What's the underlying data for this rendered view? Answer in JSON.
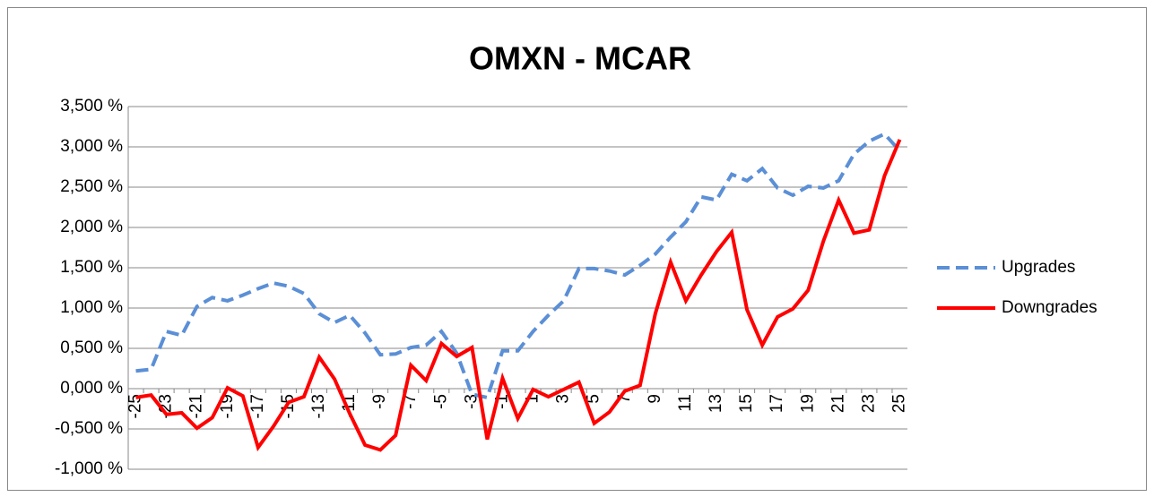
{
  "chart_data": {
    "type": "line",
    "title": "OMXN - MCAR",
    "categories": [
      "-25",
      null,
      "-23",
      null,
      "-21",
      null,
      "-19",
      null,
      "-17",
      null,
      "-15",
      null,
      "-13",
      null,
      "-11",
      null,
      "-9",
      null,
      "-7",
      null,
      "-5",
      null,
      "-3",
      null,
      "-1",
      null,
      "1",
      null,
      "3",
      null,
      "5",
      null,
      "7",
      null,
      "9",
      null,
      "11",
      null,
      "13",
      null,
      "15",
      null,
      "17",
      null,
      "19",
      null,
      "21",
      null,
      "23",
      null,
      "25"
    ],
    "series": [
      {
        "name": "Upgrades",
        "color": "#5b8fd6",
        "line_style": "dashed",
        "values": [
          0.22,
          0.24,
          0.71,
          0.66,
          1.02,
          1.13,
          1.09,
          1.16,
          1.24,
          1.31,
          1.27,
          1.18,
          0.93,
          0.82,
          0.91,
          0.69,
          0.42,
          0.43,
          0.51,
          0.54,
          0.71,
          0.44,
          -0.07,
          -0.11,
          0.47,
          0.47,
          0.71,
          0.91,
          1.09,
          1.49,
          1.49,
          1.46,
          1.41,
          1.53,
          1.67,
          1.88,
          2.07,
          2.38,
          2.34,
          2.66,
          2.58,
          2.73,
          2.49,
          2.4,
          2.51,
          2.49,
          2.58,
          2.91,
          3.07,
          3.16,
          2.95
        ]
      },
      {
        "name": "Downgrades",
        "color": "#ff0000",
        "line_style": "solid",
        "values": [
          -0.11,
          -0.08,
          -0.32,
          -0.3,
          -0.49,
          -0.36,
          0.01,
          -0.09,
          -0.73,
          -0.47,
          -0.17,
          -0.1,
          0.39,
          0.12,
          -0.31,
          -0.7,
          -0.76,
          -0.58,
          0.29,
          0.1,
          0.56,
          0.4,
          0.51,
          -0.63,
          0.13,
          -0.37,
          -0.01,
          -0.1,
          -0.01,
          0.08,
          -0.43,
          -0.29,
          -0.03,
          0.04,
          0.93,
          1.57,
          1.09,
          1.41,
          1.7,
          1.94,
          0.98,
          0.54,
          0.89,
          0.99,
          1.22,
          1.83,
          2.34,
          1.93,
          1.97,
          2.64,
          3.09
        ]
      }
    ],
    "ylim": [
      -1.0,
      3.5
    ],
    "yticks": [
      {
        "value": -1.0,
        "label": "-1,000 %"
      },
      {
        "value": -0.5,
        "label": "-0,500 %"
      },
      {
        "value": 0,
        "label": "0,000 %"
      },
      {
        "value": 0.5,
        "label": "0,500 %"
      },
      {
        "value": 1.0,
        "label": "1,000 %"
      },
      {
        "value": 1.5,
        "label": "1,500 %"
      },
      {
        "value": 2.0,
        "label": "2,000 %"
      },
      {
        "value": 2.5,
        "label": "2,500 %"
      },
      {
        "value": 3.0,
        "label": "3,000 %"
      },
      {
        "value": 3.5,
        "label": "3,500 %"
      }
    ],
    "grid": true,
    "legend": "right"
  }
}
